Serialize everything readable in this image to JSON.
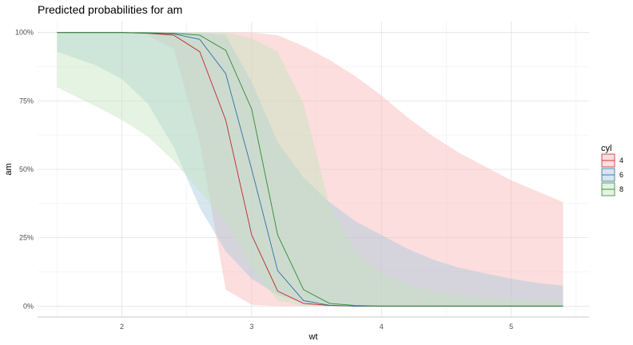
{
  "chart_data": {
    "type": "line",
    "title": "Predicted probabilities for am",
    "xlabel": "wt",
    "ylabel": "am",
    "xlim": [
      1.35,
      5.6
    ],
    "ylim": [
      -0.04,
      1.04
    ],
    "x_ticks": [
      2,
      3,
      4,
      5
    ],
    "x_tick_labels": [
      "2",
      "3",
      "4",
      "5"
    ],
    "y_ticks": [
      0,
      0.25,
      0.5,
      0.75,
      1.0
    ],
    "y_tick_labels": [
      "0%",
      "25%",
      "50%",
      "75%",
      "100%"
    ],
    "grid": true,
    "legend": {
      "title": "cyl",
      "position": "right",
      "entries": [
        "4",
        "6",
        "8"
      ]
    },
    "series": [
      {
        "name": "4",
        "color": "#c0272d",
        "band_color": "#f8b6b9",
        "x": [
          1.5,
          1.6,
          1.8,
          2.0,
          2.2,
          2.4,
          2.6,
          2.8,
          3.0,
          3.2,
          3.4,
          3.6,
          3.8,
          4.0,
          4.2,
          4.4,
          4.6,
          4.8,
          5.0,
          5.2,
          5.4
        ],
        "values": [
          1.0,
          1.0,
          1.0,
          1.0,
          0.997,
          0.99,
          0.93,
          0.68,
          0.26,
          0.055,
          0.01,
          0.002,
          0.0,
          0.0,
          0.0,
          0.0,
          0.0,
          0.0,
          0.0,
          0.0,
          0.0
        ],
        "lower": [
          1.0,
          1.0,
          1.0,
          1.0,
          0.99,
          0.94,
          0.6,
          0.06,
          0.005,
          0.0,
          0.0,
          0.0,
          0.0,
          0.0,
          0.0,
          0.0,
          0.0,
          0.0,
          0.0,
          0.0,
          0.0
        ],
        "upper": [
          1.0,
          1.0,
          1.0,
          1.0,
          1.0,
          1.0,
          1.0,
          1.0,
          1.0,
          0.99,
          0.95,
          0.9,
          0.84,
          0.77,
          0.69,
          0.62,
          0.56,
          0.51,
          0.46,
          0.42,
          0.38
        ]
      },
      {
        "name": "6",
        "color": "#2f6fa3",
        "band_color": "#a7c8db",
        "x": [
          1.5,
          1.8,
          2.0,
          2.2,
          2.4,
          2.6,
          2.8,
          3.0,
          3.2,
          3.4,
          3.6,
          3.8,
          4.0,
          4.2,
          4.4,
          4.6,
          4.8,
          5.0,
          5.2,
          5.4
        ],
        "values": [
          1.0,
          1.0,
          1.0,
          0.998,
          0.995,
          0.975,
          0.85,
          0.5,
          0.13,
          0.02,
          0.003,
          0.0,
          0.0,
          0.0,
          0.0,
          0.0,
          0.0,
          0.0,
          0.0,
          0.0
        ],
        "lower": [
          0.93,
          0.88,
          0.83,
          0.74,
          0.58,
          0.36,
          0.2,
          0.1,
          0.04,
          0.015,
          0.004,
          0.0,
          0.0,
          0.0,
          0.0,
          0.0,
          0.0,
          0.0,
          0.0,
          0.0
        ],
        "upper": [
          1.0,
          1.0,
          1.0,
          1.0,
          1.0,
          1.0,
          0.99,
          0.82,
          0.6,
          0.47,
          0.38,
          0.31,
          0.26,
          0.21,
          0.17,
          0.14,
          0.12,
          0.1,
          0.085,
          0.075
        ]
      },
      {
        "name": "8",
        "color": "#2e8b2e",
        "band_color": "#c4e4bf",
        "x": [
          1.5,
          1.8,
          2.0,
          2.2,
          2.4,
          2.6,
          2.8,
          3.0,
          3.2,
          3.4,
          3.6,
          3.8,
          4.0,
          4.2,
          4.4,
          4.6,
          4.8,
          5.0,
          5.2,
          5.4
        ],
        "values": [
          1.0,
          1.0,
          1.0,
          0.999,
          0.997,
          0.99,
          0.935,
          0.72,
          0.26,
          0.06,
          0.01,
          0.002,
          0.0,
          0.0,
          0.0,
          0.0,
          0.0,
          0.0,
          0.0,
          0.0
        ],
        "lower": [
          0.8,
          0.73,
          0.68,
          0.62,
          0.53,
          0.42,
          0.31,
          0.14,
          0.02,
          0.0,
          0.0,
          0.0,
          0.0,
          0.0,
          0.0,
          0.0,
          0.0,
          0.0,
          0.0,
          0.0
        ],
        "upper": [
          1.0,
          1.0,
          1.0,
          1.0,
          1.0,
          1.0,
          1.0,
          0.98,
          0.93,
          0.74,
          0.37,
          0.2,
          0.12,
          0.08,
          0.055,
          0.04,
          0.03,
          0.025,
          0.02,
          0.018
        ]
      }
    ]
  }
}
